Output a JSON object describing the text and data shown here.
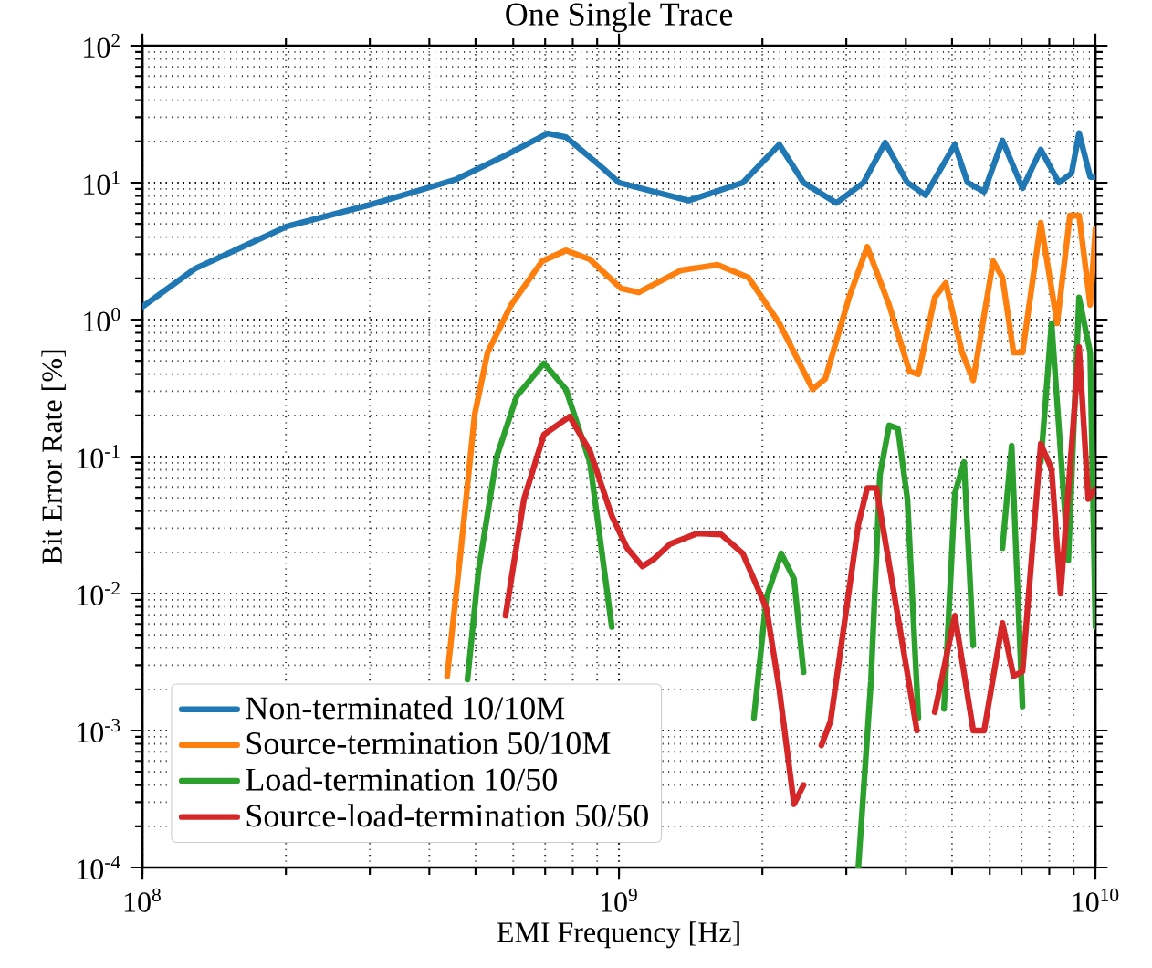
{
  "chart_data": {
    "type": "line",
    "title": "One Single Trace",
    "xlabel": "EMI Frequency [Hz]",
    "ylabel": "Bit Error Rate [%]",
    "log": "xy",
    "grid": true,
    "legend": "bottom left",
    "line_style": "solid",
    "marker": "none",
    "xlim": [
      100000000.0,
      10000000000.0
    ],
    "ylim": [
      0.0001,
      100
    ],
    "xticks": [
      {
        "value": 100000000.0,
        "label": "10$^{8}$"
      },
      {
        "value": 1000000000.0,
        "label": "10$^{9}$"
      },
      {
        "value": 10000000000.0,
        "label": "10$^{10}$"
      }
    ],
    "yticks": [
      {
        "value": 0.0001,
        "label": "10$^{-4}$"
      },
      {
        "value": 0.001,
        "label": "10$^{-3}$"
      },
      {
        "value": 0.01,
        "label": "10$^{-2}$"
      },
      {
        "value": 0.1,
        "label": "10$^{-1}$"
      },
      {
        "value": 1,
        "label": "10$^{0}$"
      },
      {
        "value": 10,
        "label": "10$^{1}$"
      },
      {
        "value": 100,
        "label": "10$^{2}$"
      }
    ],
    "series": [
      {
        "name": "Non-terminated 10/10M",
        "color": "#1f77b4",
        "x": [
          100000000.0,
          129000000.0,
          201000000.0,
          301000000.0,
          407000000.0,
          456000000.0,
          578000000.0,
          709000000.0,
          774000000.0,
          924000000.0,
          1000000000.0,
          1400000000.0,
          1820000000.0,
          2170000000.0,
          2440000000.0,
          2860000000.0,
          3260000000.0,
          3620000000.0,
          4030000000.0,
          4400000000.0,
          5070000000.0,
          5390000000.0,
          5840000000.0,
          6380000000.0,
          7030000000.0,
          7680000000.0,
          8380000000.0,
          8910000000.0,
          9240000000.0,
          9750000000.0,
          10000000000.0
        ],
        "values": [
          1.24,
          2.36,
          4.79,
          6.9,
          9.4,
          10.6,
          15.8,
          22.9,
          21.5,
          12.8,
          10,
          7.4,
          10,
          19,
          10,
          7.1,
          10,
          19.6,
          10,
          8.1,
          19,
          10,
          8.6,
          20.3,
          9.1,
          17.4,
          10,
          11.7,
          23,
          11,
          11
        ]
      },
      {
        "name": "Source-termination 50/10M",
        "color": "#ff7f0e",
        "x": [
          436000000.0,
          465000000.0,
          498000000.0,
          530000000.0,
          594000000.0,
          690000000.0,
          774000000.0,
          869000000.0,
          1010000000.0,
          1100000000.0,
          1350000000.0,
          1610000000.0,
          1870000000.0,
          2170000000.0,
          2550000000.0,
          2710000000.0,
          3040000000.0,
          3320000000.0,
          3690000000.0,
          4070000000.0,
          4250000000.0,
          4600000000.0,
          4850000000.0,
          5250000000.0,
          5540000000.0,
          6100000000.0,
          6380000000.0,
          6730000000.0,
          7030000000.0,
          7680000000.0,
          8310000000.0,
          8840000000.0,
          9240000000.0,
          9750000000.0,
          10000000000.0
        ],
        "values": [
          0.0025,
          0.0196,
          0.203,
          0.575,
          1.28,
          2.67,
          3.2,
          2.75,
          1.69,
          1.58,
          2.29,
          2.51,
          2.03,
          0.94,
          0.31,
          0.37,
          1.45,
          3.4,
          1.28,
          0.42,
          0.4,
          1.45,
          1.85,
          0.575,
          0.36,
          2.67,
          2.03,
          0.575,
          0.575,
          5.1,
          0.94,
          5.75,
          5.75,
          1.28,
          4.6
        ]
      },
      {
        "name": "Load-termination 10/50",
        "color": "#2ca02c",
        "x": [
          481000000.0,
          507000000.0,
          554000000.0,
          610000000.0,
          696000000.0,
          774000000.0,
          869000000.0,
          966000000.0,
          1400000000.0,
          1920000000.0,
          2040000000.0,
          2190000000.0,
          2330000000.0,
          2440000000.0,
          2800000000.0,
          3180000000.0,
          3380000000.0,
          3530000000.0,
          3690000000.0,
          3850000000.0,
          4030000000.0,
          4250000000.0,
          4500000000.0,
          4810000000.0,
          5070000000.0,
          5300000000.0,
          5540000000.0,
          6000000000.0,
          6380000000.0,
          6670000000.0,
          7030000000.0,
          7300000000.0,
          7680000000.0,
          8090000000.0,
          8770000000.0,
          9240000000.0,
          9750000000.0,
          10000000000.0
        ],
        "values": [
          0.00236,
          0.0145,
          0.1,
          0.275,
          0.48,
          0.31,
          0.091,
          0.0057,
          null,
          0.00124,
          0.0094,
          0.0196,
          0.0128,
          0.00267,
          null,
          0.0001,
          0.0023,
          0.0736,
          0.169,
          0.16,
          0.049,
          0.00124,
          null,
          0.00144,
          0.054,
          0.091,
          0.0042,
          null,
          0.0215,
          0.12,
          0.0015,
          null,
          0.091,
          0.94,
          0.0174,
          1.45,
          0.575,
          0.0057
        ]
      },
      {
        "name": "Source-load-termination 50/50",
        "color": "#d62728",
        "x": [
          578000000.0,
          632000000.0,
          696000000.0,
          788000000.0,
          869000000.0,
          966000000.0,
          1040000000.0,
          1120000000.0,
          1180000000.0,
          1280000000.0,
          1460000000.0,
          1640000000.0,
          1820000000.0,
          2040000000.0,
          2170000000.0,
          2330000000.0,
          2440000000.0,
          2550000000.0,
          2660000000.0,
          2780000000.0,
          3180000000.0,
          3320000000.0,
          3470000000.0,
          4220000000.0,
          4400000000.0,
          4600000000.0,
          5070000000.0,
          5540000000.0,
          5840000000.0,
          6380000000.0,
          6730000000.0,
          7030000000.0,
          7680000000.0,
          8090000000.0,
          8450000000.0,
          9240000000.0,
          9660000000.0,
          10000000000.0
        ],
        "values": [
          0.0069,
          0.049,
          0.145,
          0.196,
          0.11,
          0.037,
          0.0215,
          0.0158,
          0.0177,
          0.023,
          0.0275,
          0.027,
          0.0196,
          0.0078,
          0.002,
          0.00029,
          0.0004,
          null,
          0.00078,
          0.00117,
          0.032,
          0.059,
          0.059,
          0.001,
          null,
          0.00136,
          0.0069,
          0.001,
          0.001,
          0.0061,
          0.0025,
          0.0027,
          0.124,
          0.081,
          0.01,
          0.63,
          0.049,
          0.058
        ]
      }
    ]
  }
}
